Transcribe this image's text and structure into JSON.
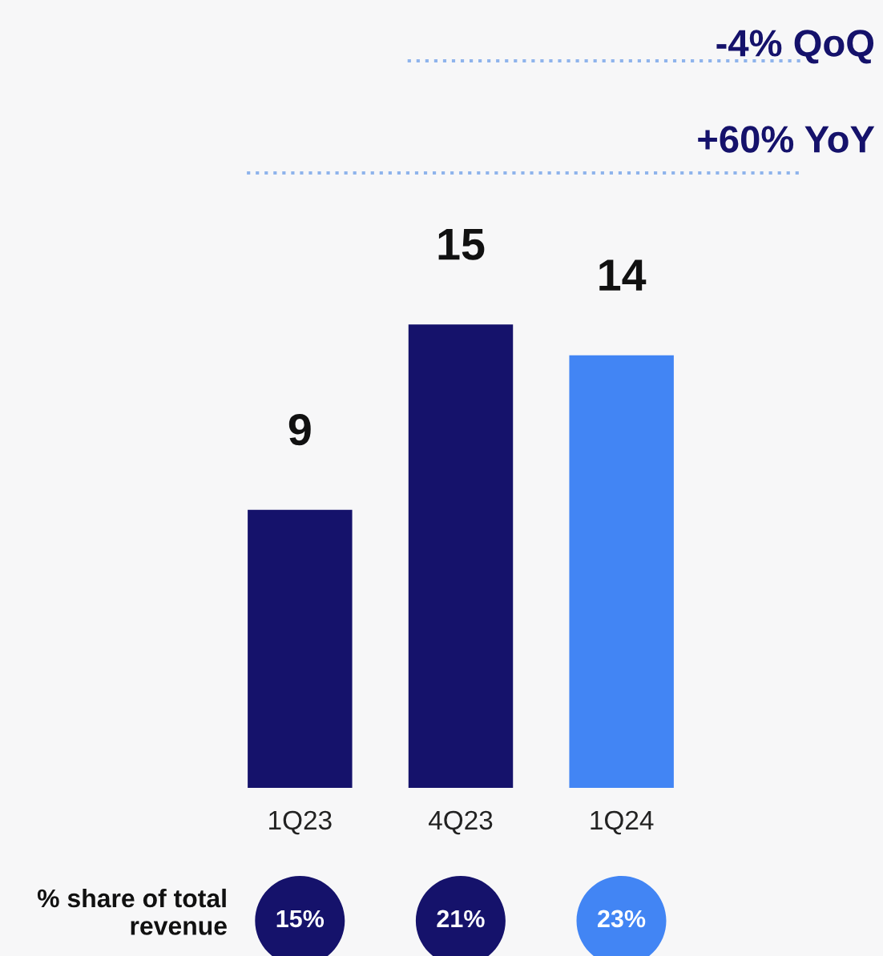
{
  "chart_data": {
    "type": "bar",
    "categories": [
      "1Q23",
      "4Q23",
      "1Q24"
    ],
    "values": [
      9,
      15,
      14
    ],
    "colors": [
      "#15126b",
      "#15126b",
      "#4285f4"
    ],
    "data_labels": true,
    "annotations": [
      "-4% QoQ",
      "+60% YoY",
      "% share of total revenue",
      "15%",
      "21%",
      "23%"
    ]
  }
}
